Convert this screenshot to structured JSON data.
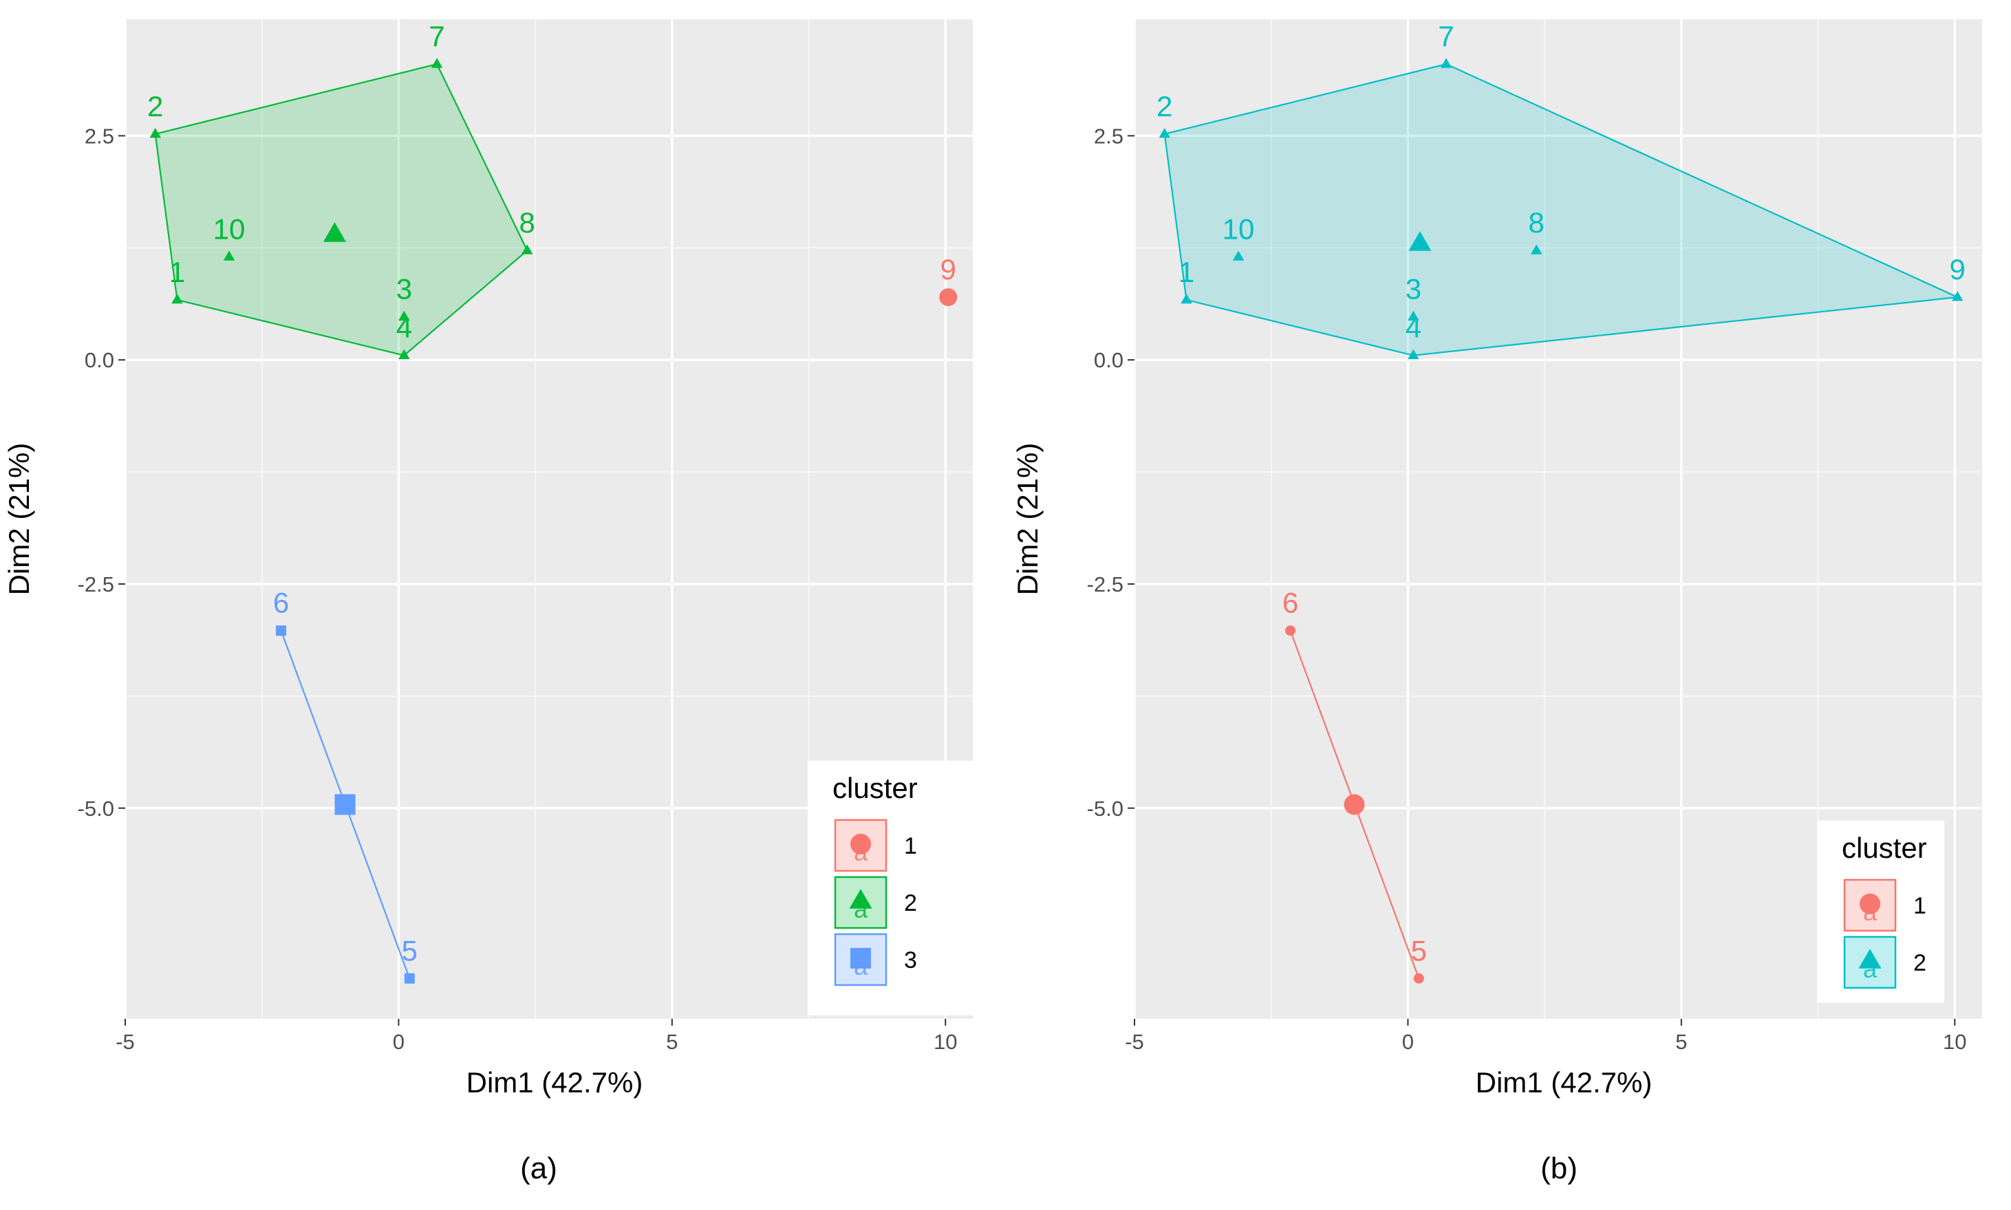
{
  "colors": {
    "panel_bg": "#EBEBEB",
    "grid_major": "#FFFFFF",
    "cluster_red": "#F8766D",
    "cluster_green": "#00BA38",
    "cluster_blue": "#619CFF",
    "cluster_cyan": "#00BFC4"
  },
  "chart_data": [
    {
      "type": "scatter",
      "caption": "(a)",
      "xlabel": "Dim1 (42.7%)",
      "ylabel": "Dim2 (21%)",
      "xlim": [
        -5,
        10.5
      ],
      "ylim": [
        -7.35,
        3.8
      ],
      "xticks": [
        -5,
        0,
        5,
        10
      ],
      "xtick_labels": [
        "-5",
        "0",
        "5",
        "10"
      ],
      "yticks": [
        2.5,
        0.0,
        -2.5,
        -5.0
      ],
      "ytick_labels": [
        "2.5",
        "0.0",
        "-2.5",
        "-5.0"
      ],
      "grid": true,
      "legend": {
        "title": "cluster",
        "position": "bottom-right",
        "entries": [
          {
            "label": "1",
            "color": "#F8766D",
            "shape": "circle"
          },
          {
            "label": "2",
            "color": "#00BA38",
            "shape": "triangle"
          },
          {
            "label": "3",
            "color": "#619CFF",
            "shape": "square"
          }
        ]
      },
      "clusters": [
        {
          "name": "1",
          "color": "#F8766D",
          "shape": "circle",
          "hull": [],
          "center": null,
          "points": [
            {
              "label": "9",
              "x": 10.05,
              "y": 0.7,
              "label_pos": "above"
            }
          ]
        },
        {
          "name": "2",
          "color": "#00BA38",
          "shape": "triangle",
          "hull": [
            [
              -4.45,
              2.52
            ],
            [
              0.7,
              3.3
            ],
            [
              2.35,
              1.22
            ],
            [
              0.1,
              0.05
            ],
            [
              -4.05,
              0.67
            ]
          ],
          "center": {
            "x": -1.17,
            "y": 1.4
          },
          "points": [
            {
              "label": "1",
              "x": -4.05,
              "y": 0.67,
              "label_pos": "above"
            },
            {
              "label": "2",
              "x": -4.45,
              "y": 2.52,
              "label_pos": "above"
            },
            {
              "label": "3",
              "x": 0.1,
              "y": 0.48,
              "label_pos": "above"
            },
            {
              "label": "4",
              "x": 0.1,
              "y": 0.05,
              "label_pos": "above"
            },
            {
              "label": "7",
              "x": 0.7,
              "y": 3.3,
              "label_pos": "above"
            },
            {
              "label": "8",
              "x": 2.35,
              "y": 1.22,
              "label_pos": "above"
            },
            {
              "label": "10",
              "x": -3.1,
              "y": 1.15,
              "label_pos": "above"
            }
          ]
        },
        {
          "name": "3",
          "color": "#619CFF",
          "shape": "square",
          "hull": [
            [
              -2.15,
              -3.02
            ],
            [
              0.2,
              -6.9
            ]
          ],
          "center": {
            "x": -0.98,
            "y": -4.96
          },
          "points": [
            {
              "label": "5",
              "x": 0.2,
              "y": -6.9,
              "label_pos": "above"
            },
            {
              "label": "6",
              "x": -2.15,
              "y": -3.02,
              "label_pos": "above"
            }
          ]
        }
      ]
    },
    {
      "type": "scatter",
      "caption": "(b)",
      "xlabel": "Dim1 (42.7%)",
      "ylabel": "Dim2 (21%)",
      "xlim": [
        -5,
        10.5
      ],
      "ylim": [
        -7.35,
        3.8
      ],
      "xticks": [
        -5,
        0,
        5,
        10
      ],
      "xtick_labels": [
        "-5",
        "0",
        "5",
        "10"
      ],
      "yticks": [
        2.5,
        0.0,
        -2.5,
        -5.0
      ],
      "ytick_labels": [
        "2.5",
        "0.0",
        "-2.5",
        "-5.0"
      ],
      "grid": true,
      "legend": {
        "title": "cluster",
        "position": "bottom-right",
        "entries": [
          {
            "label": "1",
            "color": "#F8766D",
            "shape": "circle"
          },
          {
            "label": "2",
            "color": "#00BFC4",
            "shape": "triangle"
          }
        ]
      },
      "clusters": [
        {
          "name": "1",
          "color": "#F8766D",
          "shape": "circle",
          "hull": [
            [
              -2.15,
              -3.02
            ],
            [
              0.2,
              -6.9
            ]
          ],
          "center": {
            "x": -0.98,
            "y": -4.96
          },
          "points": [
            {
              "label": "5",
              "x": 0.2,
              "y": -6.9,
              "label_pos": "above"
            },
            {
              "label": "6",
              "x": -2.15,
              "y": -3.02,
              "label_pos": "above"
            }
          ]
        },
        {
          "name": "2",
          "color": "#00BFC4",
          "shape": "triangle",
          "hull": [
            [
              -4.45,
              2.52
            ],
            [
              0.7,
              3.3
            ],
            [
              10.05,
              0.7
            ],
            [
              0.1,
              0.05
            ],
            [
              -4.05,
              0.67
            ]
          ],
          "center": {
            "x": 0.22,
            "y": 1.3
          },
          "points": [
            {
              "label": "1",
              "x": -4.05,
              "y": 0.67,
              "label_pos": "above"
            },
            {
              "label": "2",
              "x": -4.45,
              "y": 2.52,
              "label_pos": "above"
            },
            {
              "label": "3",
              "x": 0.1,
              "y": 0.48,
              "label_pos": "above"
            },
            {
              "label": "4",
              "x": 0.1,
              "y": 0.05,
              "label_pos": "above"
            },
            {
              "label": "7",
              "x": 0.7,
              "y": 3.3,
              "label_pos": "above"
            },
            {
              "label": "8",
              "x": 2.35,
              "y": 1.22,
              "label_pos": "above"
            },
            {
              "label": "9",
              "x": 10.05,
              "y": 0.7,
              "label_pos": "above"
            },
            {
              "label": "10",
              "x": -3.1,
              "y": 1.15,
              "label_pos": "above"
            }
          ]
        }
      ]
    }
  ]
}
